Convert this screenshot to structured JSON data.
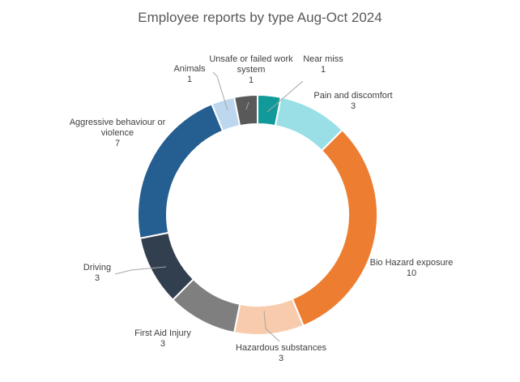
{
  "chart_data": {
    "type": "pie",
    "variant": "donut",
    "title": "Employee reports by type Aug-Oct 2024",
    "categories": [
      "Near miss",
      "Pain and discomfort",
      "Bio Hazard exposure",
      "Hazardous substances",
      "First Aid Injury",
      "Driving",
      "Aggressive behaviour or violence",
      "Animals",
      "Unsafe or failed work system"
    ],
    "values": [
      1,
      3,
      10,
      3,
      3,
      3,
      7,
      1,
      1
    ],
    "colors": [
      "#129a9a",
      "#9adfe6",
      "#ed7d31",
      "#f8cbad",
      "#7f7f7f",
      "#323f4f",
      "#255e91",
      "#bdd7ee",
      "#595959"
    ],
    "labels": [
      {
        "name_lines": [
          "Near miss"
        ],
        "value": "1"
      },
      {
        "name_lines": [
          "Pain and discomfort"
        ],
        "value": "3"
      },
      {
        "name_lines": [
          "Bio Hazard exposure"
        ],
        "value": "10"
      },
      {
        "name_lines": [
          "Hazardous substances"
        ],
        "value": "3"
      },
      {
        "name_lines": [
          "First Aid  Injury"
        ],
        "value": "3"
      },
      {
        "name_lines": [
          "Driving"
        ],
        "value": "3"
      },
      {
        "name_lines": [
          "Aggressive behaviour or",
          "violence"
        ],
        "value": "7"
      },
      {
        "name_lines": [
          "Animals"
        ],
        "value": "1"
      },
      {
        "name_lines": [
          "Unsafe or failed work",
          "system"
        ],
        "value": "1"
      }
    ],
    "legend": "none"
  }
}
